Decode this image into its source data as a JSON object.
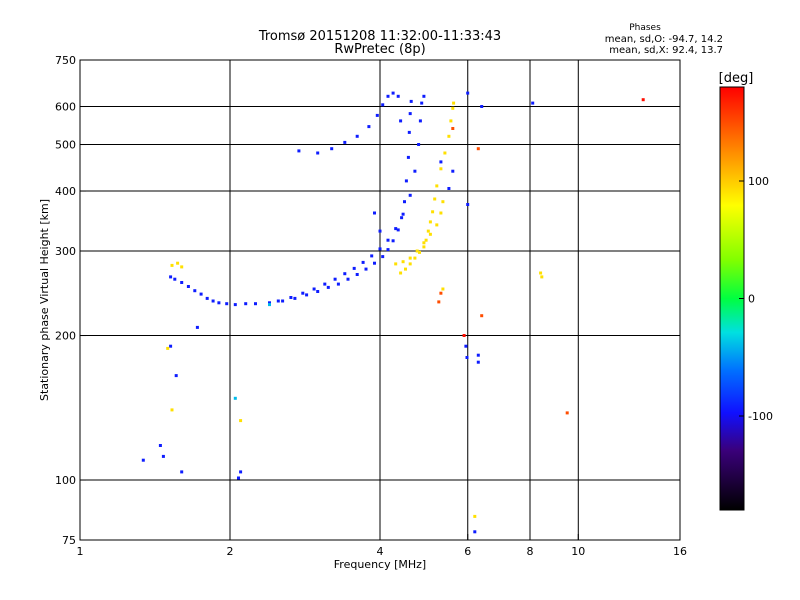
{
  "chart_data": {
    "type": "scatter",
    "title": "Tromsø 20151208 11:32:00-11:33:43",
    "subtitle": "RwPretec (8p)",
    "xlabel": "Frequency [MHz]",
    "ylabel": "Stationary phase Virtual Height [km]",
    "x_scale": "log",
    "y_scale": "log",
    "xlim": [
      1,
      16
    ],
    "ylim": [
      75,
      750
    ],
    "x_ticks": [
      1,
      2,
      4,
      6,
      8,
      10,
      16
    ],
    "x_tick_labels": [
      "1",
      "2",
      "4",
      "6",
      "8",
      "10",
      "16"
    ],
    "y_ticks": [
      75,
      100,
      200,
      300,
      400,
      500,
      600,
      750
    ],
    "y_tick_labels": [
      "75",
      "100",
      "200",
      "300",
      "400",
      "500",
      "600",
      "750"
    ],
    "grid": true,
    "stats": {
      "heading": "Phases",
      "line_o": "mean, sd,O: -94.7, 14.2",
      "line_x": "mean, sd,X:  92.4, 13.7"
    },
    "colorbar": {
      "label": "[deg]",
      "range": [
        -180,
        180
      ],
      "ticks": [
        100,
        0,
        -100
      ],
      "tick_labels": [
        "100",
        "0",
        "-100"
      ]
    },
    "series": [
      {
        "color_phase": -94.7,
        "points": [
          [
            1.52,
            265
          ],
          [
            1.55,
            262
          ],
          [
            1.6,
            258
          ],
          [
            1.65,
            253
          ],
          [
            1.7,
            248
          ],
          [
            1.75,
            244
          ],
          [
            1.8,
            239
          ],
          [
            1.85,
            236
          ],
          [
            1.9,
            234
          ],
          [
            1.97,
            233
          ],
          [
            2.05,
            232
          ],
          [
            2.15,
            233
          ],
          [
            2.25,
            233
          ],
          [
            2.4,
            234
          ],
          [
            2.55,
            236
          ],
          [
            2.7,
            239
          ],
          [
            2.85,
            243
          ],
          [
            3.0,
            247
          ],
          [
            3.15,
            252
          ],
          [
            3.3,
            256
          ],
          [
            3.45,
            262
          ],
          [
            3.6,
            268
          ],
          [
            3.75,
            275
          ],
          [
            3.9,
            283
          ],
          [
            4.05,
            292
          ],
          [
            4.15,
            302
          ],
          [
            4.25,
            315
          ],
          [
            4.35,
            332
          ],
          [
            4.42,
            352
          ],
          [
            4.48,
            380
          ],
          [
            4.52,
            420
          ],
          [
            4.56,
            470
          ],
          [
            4.58,
            530
          ],
          [
            4.6,
            580
          ],
          [
            4.62,
            615
          ],
          [
            2.5,
            236
          ],
          [
            2.65,
            240
          ],
          [
            2.8,
            245
          ],
          [
            2.95,
            250
          ],
          [
            3.1,
            256
          ],
          [
            3.25,
            262
          ],
          [
            3.4,
            269
          ],
          [
            3.55,
            276
          ],
          [
            3.7,
            284
          ],
          [
            3.85,
            293
          ],
          [
            4.0,
            303
          ],
          [
            4.15,
            316
          ],
          [
            4.3,
            334
          ],
          [
            4.45,
            358
          ],
          [
            4.6,
            392
          ],
          [
            4.7,
            440
          ],
          [
            4.78,
            500
          ],
          [
            4.82,
            560
          ],
          [
            4.85,
            610
          ],
          [
            4.9,
            630
          ],
          [
            3.0,
            480
          ],
          [
            3.2,
            490
          ],
          [
            3.4,
            505
          ],
          [
            3.6,
            520
          ],
          [
            3.8,
            545
          ],
          [
            3.95,
            575
          ],
          [
            4.05,
            605
          ],
          [
            4.15,
            630
          ],
          [
            4.25,
            640
          ],
          [
            4.35,
            630
          ],
          [
            4.4,
            560
          ],
          [
            1.72,
            208
          ],
          [
            2.75,
            485
          ],
          [
            3.9,
            360
          ],
          [
            4.0,
            330
          ],
          [
            1.52,
            190
          ],
          [
            1.34,
            110
          ],
          [
            1.45,
            118
          ],
          [
            1.47,
            112
          ],
          [
            1.6,
            104
          ],
          [
            1.56,
            165
          ],
          [
            2.1,
            104
          ],
          [
            2.08,
            101
          ],
          [
            5.95,
            190
          ],
          [
            5.98,
            180
          ],
          [
            6.3,
            182
          ],
          [
            6.3,
            176
          ],
          [
            6.2,
            78
          ],
          [
            6.0,
            640
          ],
          [
            6.4,
            600
          ],
          [
            8.1,
            610
          ],
          [
            6.0,
            375
          ],
          [
            5.6,
            440
          ],
          [
            5.5,
            405
          ],
          [
            5.3,
            460
          ]
        ]
      },
      {
        "color_phase": 92.4,
        "points": [
          [
            4.4,
            270
          ],
          [
            4.5,
            275
          ],
          [
            4.6,
            282
          ],
          [
            4.7,
            290
          ],
          [
            4.8,
            298
          ],
          [
            4.9,
            306
          ],
          [
            4.95,
            316
          ],
          [
            5.0,
            330
          ],
          [
            5.05,
            345
          ],
          [
            5.1,
            362
          ],
          [
            5.15,
            385
          ],
          [
            5.2,
            410
          ],
          [
            5.3,
            445
          ],
          [
            5.4,
            480
          ],
          [
            5.5,
            520
          ],
          [
            5.55,
            560
          ],
          [
            5.6,
            595
          ],
          [
            5.62,
            610
          ],
          [
            4.3,
            282
          ],
          [
            4.45,
            285
          ],
          [
            4.6,
            290
          ],
          [
            4.75,
            300
          ],
          [
            4.9,
            312
          ],
          [
            5.05,
            325
          ],
          [
            5.2,
            340
          ],
          [
            5.3,
            360
          ],
          [
            5.35,
            380
          ],
          [
            1.53,
            280
          ],
          [
            1.57,
            283
          ],
          [
            1.6,
            278
          ],
          [
            1.5,
            188
          ],
          [
            1.53,
            140
          ],
          [
            2.1,
            133
          ],
          [
            5.35,
            250
          ],
          [
            8.4,
            270
          ],
          [
            8.45,
            265
          ],
          [
            6.2,
            84
          ]
        ]
      },
      {
        "color_phase": 150,
        "points": [
          [
            5.25,
            235
          ],
          [
            5.3,
            245
          ],
          [
            6.3,
            490
          ],
          [
            9.5,
            138
          ],
          [
            6.4,
            220
          ],
          [
            5.6,
            540
          ]
        ]
      },
      {
        "color_phase": -40,
        "points": [
          [
            2.05,
            148
          ],
          [
            2.4,
            232
          ]
        ]
      },
      {
        "color_phase": 175,
        "points": [
          [
            13.5,
            620
          ],
          [
            5.9,
            200
          ]
        ]
      }
    ]
  }
}
